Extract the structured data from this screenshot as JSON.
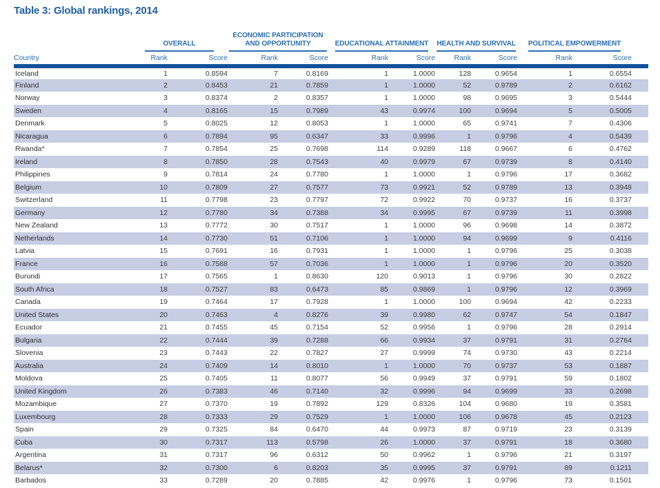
{
  "title": "Table 3: Global rankings, 2014",
  "colors": {
    "title_blue": "#1f5fa9",
    "header_blue": "#2a6db4",
    "rule_navy": "#0f519c",
    "row_stripe": "#c7cde3",
    "body_text": "#3d3d3d"
  },
  "table": {
    "country_header": "Country",
    "groups": [
      {
        "label": "OVERALL"
      },
      {
        "label": "ECONOMIC PARTICIPATION AND OPPORTUNITY"
      },
      {
        "label": "EDUCATIONAL ATTAINMENT"
      },
      {
        "label": "HEALTH AND SURVIVAL"
      },
      {
        "label": "POLITICAL EMPOWERMENT"
      }
    ],
    "sub_headers": {
      "rank": "Rank",
      "score": "Score"
    },
    "rows": [
      {
        "country": "Iceland",
        "values": [
          "1",
          "0.8594",
          "7",
          "0.8169",
          "1",
          "1.0000",
          "128",
          "0.9654",
          "1",
          "0.6554"
        ]
      },
      {
        "country": "Finland",
        "values": [
          "2",
          "0.8453",
          "21",
          "0.7859",
          "1",
          "1.0000",
          "52",
          "0.9789",
          "2",
          "0.6162"
        ]
      },
      {
        "country": "Norway",
        "values": [
          "3",
          "0.8374",
          "2",
          "0.8357",
          "1",
          "1.0000",
          "98",
          "0.9695",
          "3",
          "0.5444"
        ]
      },
      {
        "country": "Sweden",
        "values": [
          "4",
          "0.8165",
          "15",
          "0.7989",
          "43",
          "0.9974",
          "100",
          "0.9694",
          "5",
          "0.5005"
        ]
      },
      {
        "country": "Denmark",
        "values": [
          "5",
          "0.8025",
          "12",
          "0.8053",
          "1",
          "1.0000",
          "65",
          "0.9741",
          "7",
          "0.4306"
        ]
      },
      {
        "country": "Nicaragua",
        "values": [
          "6",
          "0.7894",
          "95",
          "0.6347",
          "33",
          "0.9996",
          "1",
          "0.9796",
          "4",
          "0.5439"
        ]
      },
      {
        "country": "Rwanda*",
        "values": [
          "7",
          "0.7854",
          "25",
          "0.7698",
          "114",
          "0.9289",
          "118",
          "0.9667",
          "6",
          "0.4762"
        ]
      },
      {
        "country": "Ireland",
        "values": [
          "8",
          "0.7850",
          "28",
          "0.7543",
          "40",
          "0.9979",
          "67",
          "0.9739",
          "8",
          "0.4140"
        ]
      },
      {
        "country": "Philippines",
        "values": [
          "9",
          "0.7814",
          "24",
          "0.7780",
          "1",
          "1.0000",
          "1",
          "0.9796",
          "17",
          "0.3682"
        ]
      },
      {
        "country": "Belgium",
        "values": [
          "10",
          "0.7809",
          "27",
          "0.7577",
          "73",
          "0.9921",
          "52",
          "0.9789",
          "13",
          "0.3948"
        ]
      },
      {
        "country": "Switzerland",
        "values": [
          "11",
          "0.7798",
          "23",
          "0.7797",
          "72",
          "0.9922",
          "70",
          "0.9737",
          "16",
          "0.3737"
        ]
      },
      {
        "country": "Germany",
        "values": [
          "12",
          "0.7780",
          "34",
          "0.7388",
          "34",
          "0.9995",
          "67",
          "0.9739",
          "11",
          "0.3998"
        ]
      },
      {
        "country": "New Zealand",
        "values": [
          "13",
          "0.7772",
          "30",
          "0.7517",
          "1",
          "1.0000",
          "96",
          "0.9698",
          "14",
          "0.3872"
        ]
      },
      {
        "country": "Netherlands",
        "values": [
          "14",
          "0.7730",
          "51",
          "0.7106",
          "1",
          "1.0000",
          "94",
          "0.9699",
          "9",
          "0.4116"
        ]
      },
      {
        "country": "Latvia",
        "values": [
          "15",
          "0.7691",
          "16",
          "0.7931",
          "1",
          "1.0000",
          "1",
          "0.9796",
          "25",
          "0.3038"
        ]
      },
      {
        "country": "France",
        "values": [
          "16",
          "0.7588",
          "57",
          "0.7036",
          "1",
          "1.0000",
          "1",
          "0.9796",
          "20",
          "0.3520"
        ]
      },
      {
        "country": "Burundi",
        "values": [
          "17",
          "0.7565",
          "1",
          "0.8630",
          "120",
          "0.9013",
          "1",
          "0.9796",
          "30",
          "0.2822"
        ]
      },
      {
        "country": "South Africa",
        "values": [
          "18",
          "0.7527",
          "83",
          "0.6473",
          "85",
          "0.9869",
          "1",
          "0.9796",
          "12",
          "0.3969"
        ]
      },
      {
        "country": "Canada",
        "values": [
          "19",
          "0.7464",
          "17",
          "0.7928",
          "1",
          "1.0000",
          "100",
          "0.9694",
          "42",
          "0.2233"
        ]
      },
      {
        "country": "United States",
        "values": [
          "20",
          "0.7463",
          "4",
          "0.8276",
          "39",
          "0.9980",
          "62",
          "0.9747",
          "54",
          "0.1847"
        ]
      },
      {
        "country": "Ecuador",
        "values": [
          "21",
          "0.7455",
          "45",
          "0.7154",
          "52",
          "0.9956",
          "1",
          "0.9796",
          "28",
          "0.2914"
        ]
      },
      {
        "country": "Bulgaria",
        "values": [
          "22",
          "0.7444",
          "39",
          "0.7288",
          "66",
          "0.9934",
          "37",
          "0.9791",
          "31",
          "0.2764"
        ]
      },
      {
        "country": "Slovenia",
        "values": [
          "23",
          "0.7443",
          "22",
          "0.7827",
          "27",
          "0.9999",
          "74",
          "0.9730",
          "43",
          "0.2214"
        ]
      },
      {
        "country": "Australia",
        "values": [
          "24",
          "0.7409",
          "14",
          "0.8010",
          "1",
          "1.0000",
          "70",
          "0.9737",
          "53",
          "0.1887"
        ]
      },
      {
        "country": "Moldova",
        "values": [
          "25",
          "0.7405",
          "11",
          "0.8077",
          "56",
          "0.9949",
          "37",
          "0.9791",
          "59",
          "0.1802"
        ]
      },
      {
        "country": "United Kingdom",
        "values": [
          "26",
          "0.7383",
          "46",
          "0.7140",
          "32",
          "0.9996",
          "94",
          "0.9699",
          "33",
          "0.2698"
        ]
      },
      {
        "country": "Mozambique",
        "values": [
          "27",
          "0.7370",
          "19",
          "0.7892",
          "129",
          "0.8326",
          "104",
          "0.9680",
          "19",
          "0.3581"
        ]
      },
      {
        "country": "Luxembourg",
        "values": [
          "28",
          "0.7333",
          "29",
          "0.7529",
          "1",
          "1.0000",
          "106",
          "0.9678",
          "45",
          "0.2123"
        ]
      },
      {
        "country": "Spain",
        "values": [
          "29",
          "0.7325",
          "84",
          "0.6470",
          "44",
          "0.9973",
          "87",
          "0.9719",
          "23",
          "0.3139"
        ]
      },
      {
        "country": "Cuba",
        "values": [
          "30",
          "0.7317",
          "113",
          "0.5798",
          "26",
          "1.0000",
          "37",
          "0.9791",
          "18",
          "0.3680"
        ]
      },
      {
        "country": "Argentina",
        "values": [
          "31",
          "0.7317",
          "96",
          "0.6312",
          "50",
          "0.9962",
          "1",
          "0.9796",
          "21",
          "0.3197"
        ]
      },
      {
        "country": "Belarus*",
        "values": [
          "32",
          "0.7300",
          "6",
          "0.8203",
          "35",
          "0.9995",
          "37",
          "0.9791",
          "89",
          "0.1211"
        ]
      },
      {
        "country": "Barbados",
        "values": [
          "33",
          "0.7289",
          "20",
          "0.7885",
          "42",
          "0.9976",
          "1",
          "0.9796",
          "73",
          "0.1501"
        ]
      }
    ]
  }
}
